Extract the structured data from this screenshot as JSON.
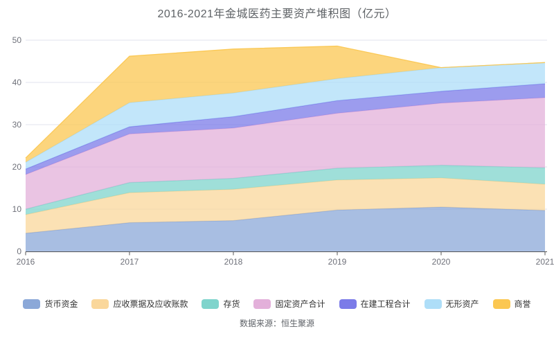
{
  "source_note": "数据来源：恒生聚源",
  "chart_data": {
    "type": "area",
    "stacked": true,
    "title": "2016-2021年金城医药主要资产堆积图（亿元）",
    "unit": "亿元",
    "x": [
      2016,
      2017,
      2018,
      2019,
      2020,
      2021
    ],
    "series": [
      {
        "name": "货币资金",
        "color": "#8BA8D8",
        "values": [
          4.3,
          6.8,
          7.3,
          9.8,
          10.5,
          9.7
        ]
      },
      {
        "name": "应收票据及应收账款",
        "color": "#FAD79B",
        "values": [
          4.4,
          7.1,
          7.4,
          7.1,
          6.9,
          6.2
        ]
      },
      {
        "name": "存货",
        "color": "#7FD4CC",
        "values": [
          1.3,
          2.4,
          2.6,
          2.8,
          3.0,
          3.9
        ]
      },
      {
        "name": "固定资产合计",
        "color": "#E3B0DA",
        "values": [
          8.2,
          11.5,
          11.9,
          13.0,
          14.7,
          16.6
        ]
      },
      {
        "name": "在建工程合计",
        "color": "#7B7BE8",
        "values": [
          1.3,
          1.7,
          2.7,
          3.0,
          2.8,
          3.3
        ]
      },
      {
        "name": "无形资产",
        "color": "#AEDEF8",
        "values": [
          1.6,
          5.7,
          5.6,
          5.2,
          5.6,
          5.0
        ]
      },
      {
        "name": "商誉",
        "color": "#FBC751",
        "values": [
          1.0,
          11.0,
          10.4,
          7.7,
          0,
          0
        ]
      }
    ],
    "ylim": [
      0,
      50
    ],
    "yticks": [
      0,
      10,
      20,
      30,
      40,
      50
    ],
    "grid": true,
    "grid_color": "#E0E3EE",
    "axis_color": "#555555",
    "tick_label_color": "#6E7079",
    "area_opacity": 0.75,
    "legend_position": "bottom"
  }
}
